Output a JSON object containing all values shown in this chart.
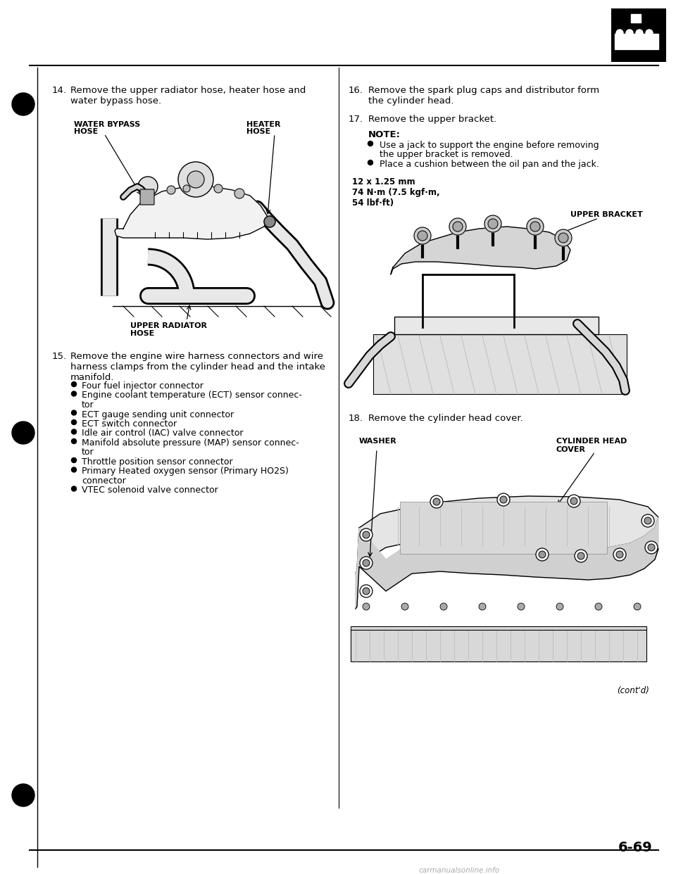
{
  "bg_color": "#ffffff",
  "page_number": "6-69",
  "watermark": "carmanualsonline.info",
  "bullet_dot": "•",
  "step14": {
    "num": "14.",
    "text": "Remove the upper radiator hose, heater hose and\nwater bypass hose.",
    "label_wb": "WATER BYPASS\nHOSE",
    "label_ht": "HEATER\nHOSE",
    "label_ur": "UPPER RADIATOR\nHOSE"
  },
  "step15": {
    "num": "15.",
    "text": "Remove the engine wire harness connectors and wire\nharness clamps from the cylinder head and the intake\nmanifold.",
    "bullets": [
      "Four fuel injector connector",
      "Engine coolant temperature (ECT) sensor connec-\ntor",
      "ECT gauge sending unit connector",
      "ECT switch connector",
      "Idle air control (IAC) valve connector",
      "Manifold absolute pressure (MAP) sensor connec-\ntor",
      "Throttle position sensor connector",
      "Primary Heated oxygen sensor (Primary HO2S)\nconnector",
      "VTEC solenoid valve connector"
    ]
  },
  "step16": {
    "num": "16.",
    "text": "Remove the spark plug caps and distributor form\nthe cylinder head."
  },
  "step17": {
    "num": "17.",
    "text": "Remove the upper bracket.",
    "note_title": "NOTE:",
    "note_bullets": [
      "Use a jack to support the engine before removing\nthe upper bracket is removed.",
      "Place a cushion between the oil pan and the jack."
    ],
    "torque_text": "12 x 1.25 mm\n74 N·m (7.5 kgf·m,\n54 lbf·ft)",
    "label_ub": "UPPER BRACKET"
  },
  "step18": {
    "num": "18.",
    "text": "Remove the cylinder head cover.",
    "label_ws": "WASHER",
    "label_chc": "CYLINDER HEAD\nCOVER"
  },
  "cont_text": "(cont'd)",
  "fs_body": 9.5,
  "fs_label": 8.0,
  "fs_page": 14
}
